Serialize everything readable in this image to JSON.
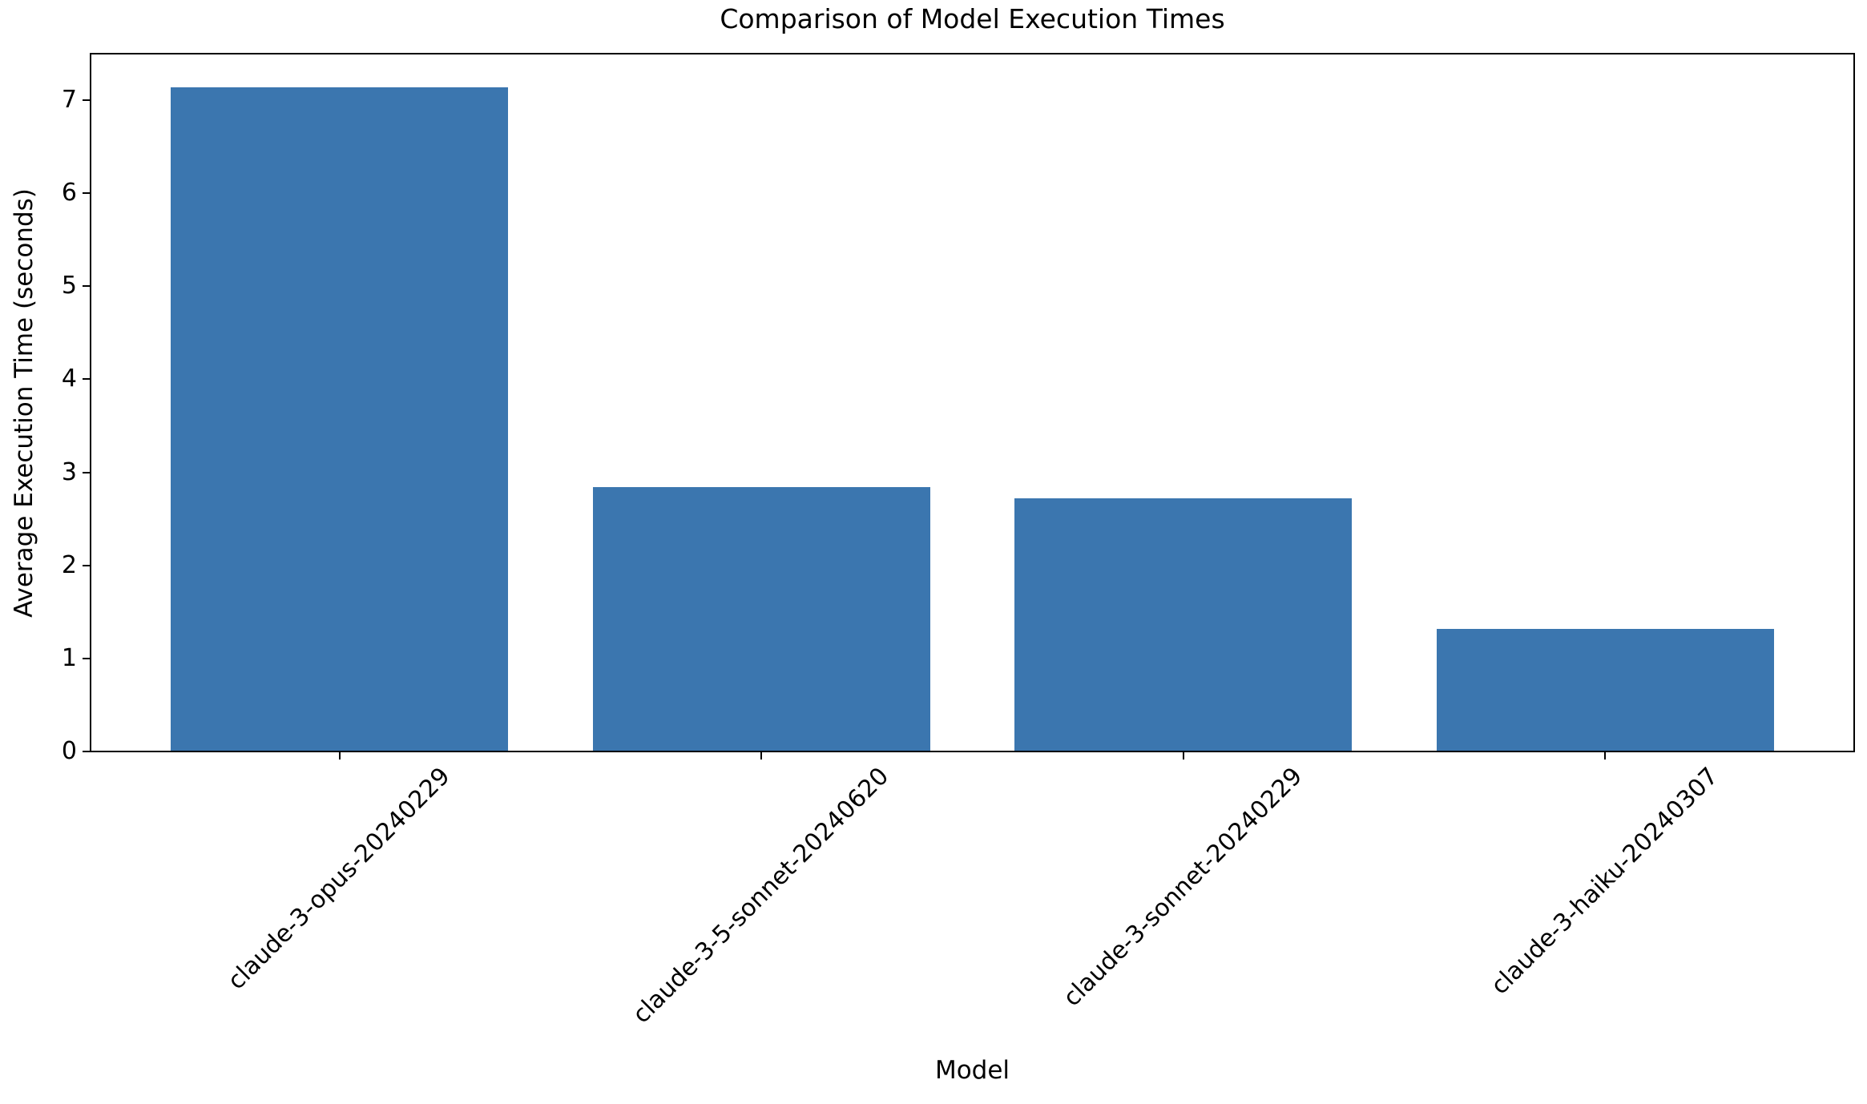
{
  "chart_data": {
    "type": "bar",
    "title": "Comparison of Model Execution Times",
    "xlabel": "Model",
    "ylabel": "Average Execution Time (seconds)",
    "categories": [
      "claude-3-opus-20240229",
      "claude-3-5-sonnet-20240620",
      "claude-3-sonnet-20240229",
      "claude-3-haiku-20240307"
    ],
    "values": [
      7.14,
      2.84,
      2.72,
      1.32
    ],
    "yticks": [
      0,
      1,
      2,
      3,
      4,
      5,
      6,
      7
    ],
    "ylim": [
      0,
      7.5
    ],
    "bar_color": "#3B76AF",
    "bar_width_fraction": 0.8,
    "x_tick_rotation_deg": 45,
    "grid": false,
    "legend": null
  }
}
